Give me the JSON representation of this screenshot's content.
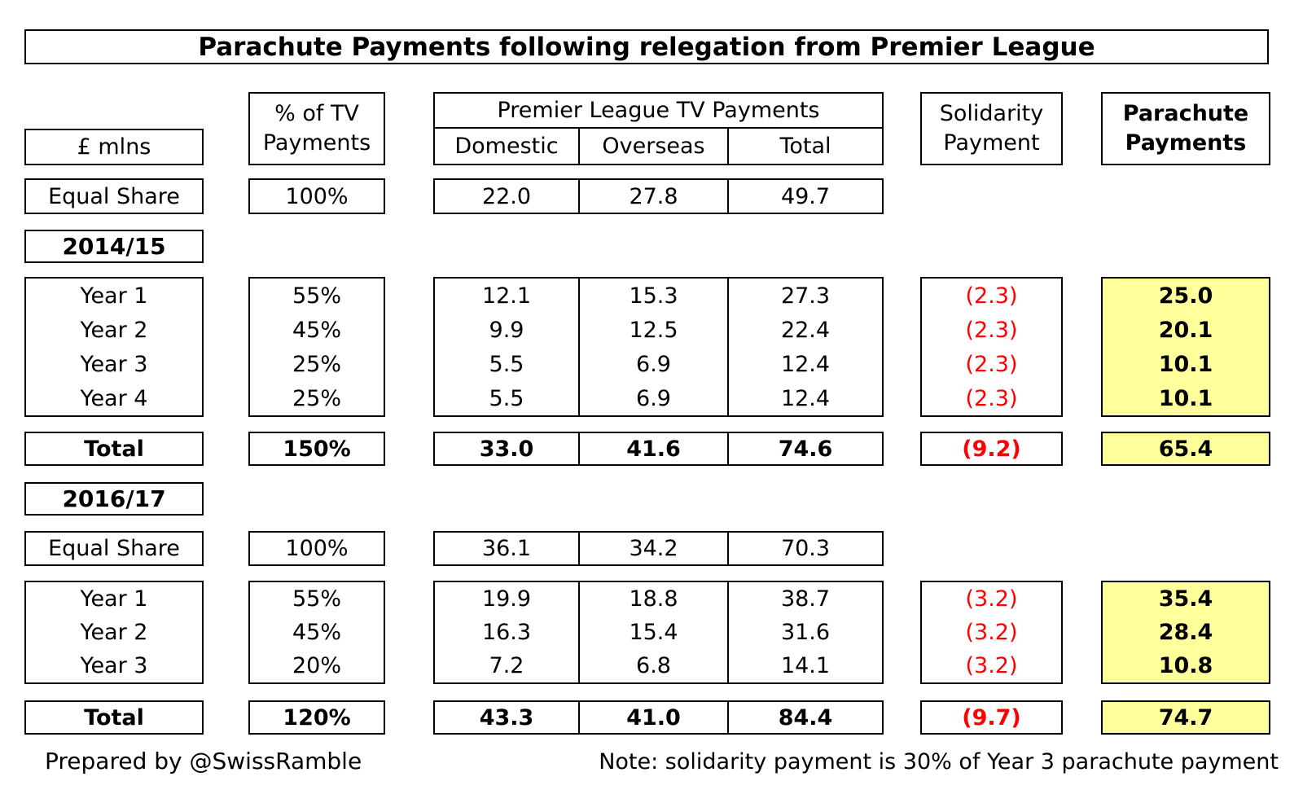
{
  "colors": {
    "highlight": "#FFFF9C",
    "negative": "#FF0000"
  },
  "chart_data": {
    "type": "table",
    "title": "Parachute Payments following relegation from Premier League",
    "unit_label": "£ mlns",
    "header": {
      "pct_line1": "% of TV",
      "pct_line2": "Payments",
      "tv_group": "Premier League TV Payments",
      "tv_cols": [
        "Domestic",
        "Overseas",
        "Total"
      ],
      "solidarity_line1": "Solidarity",
      "solidarity_line2": "Payment",
      "parachute_line1": "Parachute",
      "parachute_line2": "Payments"
    },
    "sections": [
      {
        "season": "2014/15",
        "equal_share": {
          "label": "Equal Share",
          "pct": "100%",
          "domestic": "22.0",
          "overseas": "27.8",
          "total": "49.7"
        },
        "years": [
          {
            "label": "Year 1",
            "pct": "55%",
            "domestic": "12.1",
            "overseas": "15.3",
            "total": "27.3",
            "solidarity": "(2.3)",
            "parachute": "25.0"
          },
          {
            "label": "Year 2",
            "pct": "45%",
            "domestic": "9.9",
            "overseas": "12.5",
            "total": "22.4",
            "solidarity": "(2.3)",
            "parachute": "20.1"
          },
          {
            "label": "Year 3",
            "pct": "25%",
            "domestic": "5.5",
            "overseas": "6.9",
            "total": "12.4",
            "solidarity": "(2.3)",
            "parachute": "10.1"
          },
          {
            "label": "Year 4",
            "pct": "25%",
            "domestic": "5.5",
            "overseas": "6.9",
            "total": "12.4",
            "solidarity": "(2.3)",
            "parachute": "10.1"
          }
        ],
        "total": {
          "label": "Total",
          "pct": "150%",
          "domestic": "33.0",
          "overseas": "41.6",
          "total": "74.6",
          "solidarity": "(9.2)",
          "parachute": "65.4"
        }
      },
      {
        "season": "2016/17",
        "equal_share": {
          "label": "Equal Share",
          "pct": "100%",
          "domestic": "36.1",
          "overseas": "34.2",
          "total": "70.3"
        },
        "years": [
          {
            "label": "Year 1",
            "pct": "55%",
            "domestic": "19.9",
            "overseas": "18.8",
            "total": "38.7",
            "solidarity": "(3.2)",
            "parachute": "35.4"
          },
          {
            "label": "Year 2",
            "pct": "45%",
            "domestic": "16.3",
            "overseas": "15.4",
            "total": "31.6",
            "solidarity": "(3.2)",
            "parachute": "28.4"
          },
          {
            "label": "Year 3",
            "pct": "20%",
            "domestic": "7.2",
            "overseas": "6.8",
            "total": "14.1",
            "solidarity": "(3.2)",
            "parachute": "10.8"
          }
        ],
        "total": {
          "label": "Total",
          "pct": "120%",
          "domestic": "43.3",
          "overseas": "41.0",
          "total": "84.4",
          "solidarity": "(9.7)",
          "parachute": "74.7"
        }
      }
    ]
  },
  "footer": {
    "credit": "Prepared by @SwissRamble",
    "note": "Note: solidarity payment is 30% of Year 3 parachute payment"
  }
}
